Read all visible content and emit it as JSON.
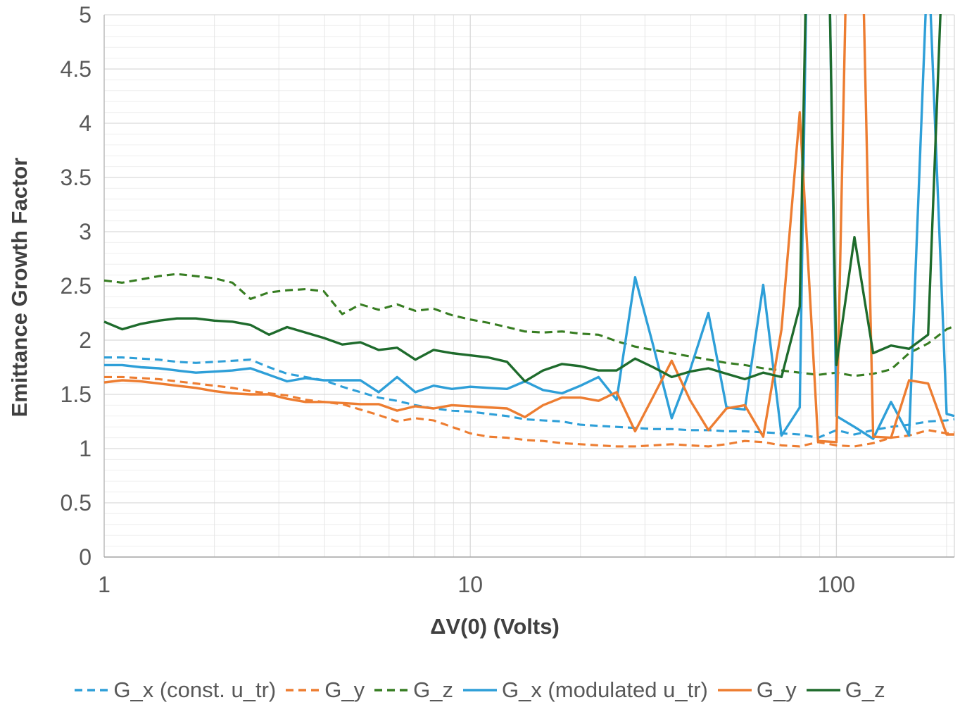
{
  "chart_data": {
    "type": "line",
    "title": "",
    "xlabel": "ΔV(0) (Volts)",
    "ylabel": "Emittance Growth Factor",
    "x_scale": "log",
    "xlim": [
      1,
      210
    ],
    "ylim": [
      0,
      5
    ],
    "grid": "on",
    "legend_position": "bottom",
    "y_ticks": [
      {
        "v": 0,
        "label": "0"
      },
      {
        "v": 0.5,
        "label": "0.5"
      },
      {
        "v": 1,
        "label": "1"
      },
      {
        "v": 1.5,
        "label": "1.5"
      },
      {
        "v": 2,
        "label": "2"
      },
      {
        "v": 2.5,
        "label": "2.5"
      },
      {
        "v": 3,
        "label": "3"
      },
      {
        "v": 3.5,
        "label": "3.5"
      },
      {
        "v": 4,
        "label": "4"
      },
      {
        "v": 4.5,
        "label": "4.5"
      },
      {
        "v": 5,
        "label": "5"
      }
    ],
    "x_ticks": [
      {
        "v": 1,
        "label": "1"
      },
      {
        "v": 10,
        "label": "10"
      },
      {
        "v": 100,
        "label": "100"
      }
    ],
    "x": [
      1,
      1.12,
      1.26,
      1.41,
      1.58,
      1.78,
      2,
      2.24,
      2.51,
      2.82,
      3.16,
      3.55,
      3.98,
      4.47,
      5.01,
      5.62,
      6.31,
      7.08,
      7.94,
      8.91,
      10,
      11.2,
      12.6,
      14.1,
      15.8,
      17.8,
      20,
      22.4,
      25.1,
      28.2,
      31.6,
      35.5,
      39.8,
      44.7,
      50.1,
      56.2,
      63.1,
      70.8,
      79.4,
      89.1,
      100,
      112,
      126,
      141,
      158,
      178,
      200,
      210
    ],
    "series": [
      {
        "name": "G_x (const. u_tr)",
        "color": "#2E9FD8",
        "dash": true,
        "values": [
          1.84,
          1.84,
          1.83,
          1.82,
          1.8,
          1.79,
          1.8,
          1.81,
          1.82,
          1.75,
          1.69,
          1.66,
          1.63,
          1.57,
          1.52,
          1.47,
          1.44,
          1.4,
          1.37,
          1.35,
          1.34,
          1.32,
          1.3,
          1.27,
          1.26,
          1.25,
          1.22,
          1.21,
          1.2,
          1.19,
          1.18,
          1.18,
          1.17,
          1.17,
          1.16,
          1.16,
          1.15,
          1.14,
          1.13,
          1.1,
          1.17,
          1.13,
          1.17,
          1.2,
          1.22,
          1.25,
          1.26,
          1.27
        ]
      },
      {
        "name": "G_y",
        "color": "#ED7D31",
        "dash": true,
        "values": [
          1.66,
          1.66,
          1.65,
          1.64,
          1.62,
          1.6,
          1.58,
          1.56,
          1.53,
          1.51,
          1.49,
          1.45,
          1.43,
          1.41,
          1.36,
          1.31,
          1.25,
          1.28,
          1.26,
          1.2,
          1.14,
          1.11,
          1.1,
          1.08,
          1.07,
          1.05,
          1.04,
          1.03,
          1.02,
          1.02,
          1.03,
          1.04,
          1.03,
          1.02,
          1.04,
          1.07,
          1.06,
          1.03,
          1.02,
          1.06,
          1.03,
          1.02,
          1.05,
          1.1,
          1.12,
          1.17,
          1.14,
          1.15
        ]
      },
      {
        "name": "G_z",
        "color": "#377D22",
        "dash": true,
        "values": [
          2.55,
          2.53,
          2.56,
          2.59,
          2.61,
          2.59,
          2.57,
          2.53,
          2.38,
          2.44,
          2.46,
          2.47,
          2.45,
          2.24,
          2.33,
          2.28,
          2.33,
          2.27,
          2.29,
          2.23,
          2.19,
          2.16,
          2.12,
          2.08,
          2.07,
          2.08,
          2.06,
          2.05,
          1.99,
          1.94,
          1.91,
          1.88,
          1.85,
          1.82,
          1.79,
          1.77,
          1.74,
          1.72,
          1.7,
          1.68,
          1.7,
          1.67,
          1.69,
          1.73,
          1.88,
          1.97,
          2.1,
          2.13
        ]
      },
      {
        "name": "G_x (modulated u_tr)",
        "color": "#2E9FD8",
        "dash": false,
        "values": [
          1.77,
          1.77,
          1.75,
          1.74,
          1.72,
          1.7,
          1.71,
          1.72,
          1.74,
          1.68,
          1.62,
          1.65,
          1.63,
          1.63,
          1.63,
          1.52,
          1.66,
          1.52,
          1.58,
          1.55,
          1.57,
          1.56,
          1.55,
          1.62,
          1.54,
          1.51,
          1.58,
          1.66,
          1.45,
          2.58,
          1.95,
          1.28,
          1.72,
          2.25,
          1.38,
          1.36,
          2.51,
          1.12,
          1.38,
          12,
          1.3,
          1.2,
          1.09,
          1.43,
          1.12,
          5.6,
          1.32,
          1.3
        ]
      },
      {
        "name": "G_y",
        "color": "#ED7D31",
        "dash": false,
        "values": [
          1.61,
          1.63,
          1.62,
          1.6,
          1.58,
          1.56,
          1.53,
          1.51,
          1.5,
          1.5,
          1.46,
          1.43,
          1.43,
          1.42,
          1.41,
          1.41,
          1.35,
          1.39,
          1.37,
          1.4,
          1.39,
          1.38,
          1.37,
          1.29,
          1.4,
          1.47,
          1.47,
          1.44,
          1.52,
          1.16,
          1.48,
          1.81,
          1.45,
          1.17,
          1.37,
          1.4,
          1.11,
          2.1,
          4.1,
          1.07,
          1.06,
          9,
          1.11,
          1.1,
          1.63,
          1.6,
          1.13,
          1.13
        ]
      },
      {
        "name": "G_z",
        "color": "#1E6B2C",
        "dash": false,
        "values": [
          2.17,
          2.1,
          2.15,
          2.18,
          2.2,
          2.2,
          2.18,
          2.17,
          2.14,
          2.05,
          2.12,
          2.07,
          2.02,
          1.96,
          1.98,
          1.91,
          1.93,
          1.82,
          1.91,
          1.88,
          1.86,
          1.84,
          1.8,
          1.62,
          1.72,
          1.78,
          1.76,
          1.72,
          1.72,
          1.83,
          1.75,
          1.66,
          1.71,
          1.74,
          1.69,
          1.64,
          1.7,
          1.66,
          2.31,
          11,
          1.77,
          2.95,
          1.88,
          1.95,
          1.92,
          2.05,
          6.5,
          8
        ]
      }
    ],
    "clip_note": "Spikes near x=89 (solid blue, solid green), x=112 (solid orange), x=178 (solid blue) and x=200+ (solid green) exceed the y-axis maximum of 5 and are clipped at the top of the plot.",
    "style": {
      "minor_grid_color": "#EFEFEF",
      "major_grid_color": "#D9D9D9",
      "vertical_minor_grid_color": "#E6E6E6",
      "left_axis_color": "#BFBFBF",
      "bottom_axis_color": "#A6A6A6",
      "tick_text_color": "#595959",
      "title_text_color": "#404040"
    }
  }
}
